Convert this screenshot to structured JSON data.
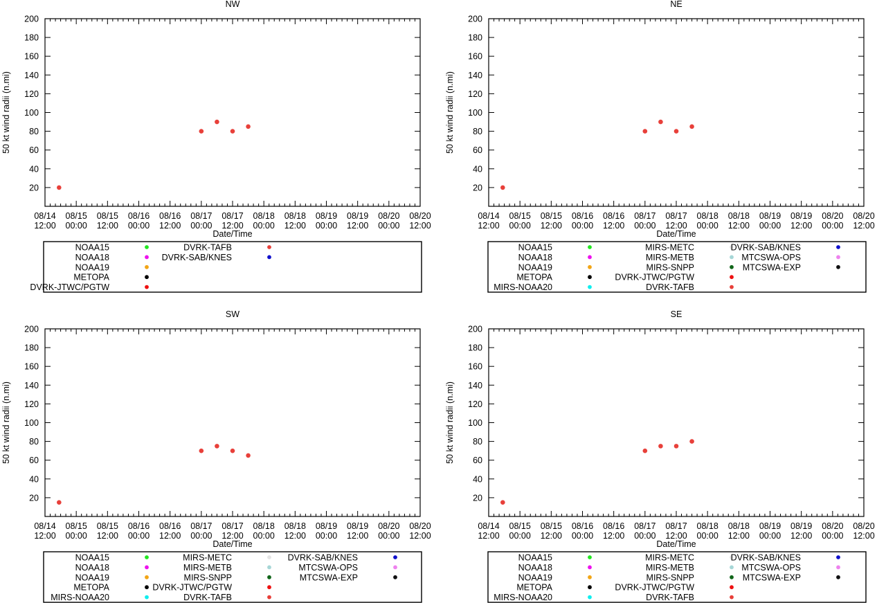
{
  "chart_data": [
    {
      "type": "scatter",
      "title": "NW",
      "xlabel": "Date/Time",
      "ylabel": "50 kt wind radii (n.mi)",
      "ylim": [
        0,
        200
      ],
      "yticks": [
        20,
        40,
        60,
        80,
        100,
        120,
        140,
        160,
        180,
        200
      ],
      "xlim": [
        0,
        12
      ],
      "xtick_labels": [
        [
          "08/14",
          "12:00"
        ],
        [
          "08/15",
          "00:00"
        ],
        [
          "08/15",
          "12:00"
        ],
        [
          "08/16",
          "00:00"
        ],
        [
          "08/16",
          "12:00"
        ],
        [
          "08/17",
          "00:00"
        ],
        [
          "08/17",
          "12:00"
        ],
        [
          "08/18",
          "00:00"
        ],
        [
          "08/18",
          "12:00"
        ],
        [
          "08/19",
          "00:00"
        ],
        [
          "08/19",
          "12:00"
        ],
        [
          "08/20",
          "00:00"
        ],
        [
          "08/20",
          "12:00"
        ]
      ],
      "series": [
        {
          "name": "DVRK-TAFB",
          "color": "#e8403a",
          "x": [
            0.45,
            5.0,
            5.5,
            6.0,
            6.5
          ],
          "y": [
            20,
            80,
            90,
            80,
            85
          ]
        }
      ],
      "legend": [
        {
          "name": "NOAA15",
          "color": "#22e822"
        },
        {
          "name": "NOAA18",
          "color": "#ee11ee"
        },
        {
          "name": "NOAA19",
          "color": "#f2a516"
        },
        {
          "name": "METOPA",
          "color": "#000000"
        },
        {
          "name": "DVRK-JTWC/PGTW",
          "color": "#ee1111"
        },
        {
          "name": "DVRK-TAFB",
          "color": "#e8403a"
        },
        {
          "name": "DVRK-SAB/KNES",
          "color": "#1111cc"
        }
      ]
    },
    {
      "type": "scatter",
      "title": "NE",
      "xlabel": "Date/Time",
      "ylabel": "50 kt wind radii (n.mi)",
      "ylim": [
        0,
        200
      ],
      "yticks": [
        20,
        40,
        60,
        80,
        100,
        120,
        140,
        160,
        180,
        200
      ],
      "xlim": [
        0,
        12
      ],
      "xtick_labels": [
        [
          "08/14",
          "12:00"
        ],
        [
          "08/15",
          "00:00"
        ],
        [
          "08/15",
          "12:00"
        ],
        [
          "08/16",
          "00:00"
        ],
        [
          "08/16",
          "12:00"
        ],
        [
          "08/17",
          "00:00"
        ],
        [
          "08/17",
          "12:00"
        ],
        [
          "08/18",
          "00:00"
        ],
        [
          "08/18",
          "12:00"
        ],
        [
          "08/19",
          "00:00"
        ],
        [
          "08/19",
          "12:00"
        ],
        [
          "08/20",
          "00:00"
        ],
        [
          "08/20",
          "12:00"
        ]
      ],
      "series": [
        {
          "name": "DVRK-TAFB",
          "color": "#e8403a",
          "x": [
            0.45,
            5.0,
            5.5,
            6.0,
            6.5
          ],
          "y": [
            20,
            80,
            90,
            80,
            85
          ]
        }
      ],
      "legend": [
        {
          "name": "NOAA15",
          "color": "#22e822"
        },
        {
          "name": "NOAA18",
          "color": "#ee11ee"
        },
        {
          "name": "NOAA19",
          "color": "#f2a516"
        },
        {
          "name": "METOPA",
          "color": "#000000"
        },
        {
          "name": "MIRS-NOAA20",
          "color": "#11eeee"
        },
        {
          "name": "MIRS-METC",
          "color": "#e4e4e4"
        },
        {
          "name": "MIRS-METB",
          "color": "#a6d6d6"
        },
        {
          "name": "MIRS-SNPP",
          "color": "#11661a"
        },
        {
          "name": "DVRK-JTWC/PGTW",
          "color": "#ee1111"
        },
        {
          "name": "DVRK-TAFB",
          "color": "#e8403a"
        },
        {
          "name": "DVRK-SAB/KNES",
          "color": "#1111cc"
        },
        {
          "name": "MTCSWA-OPS",
          "color": "#ee82ee"
        },
        {
          "name": "MTCSWA-EXP",
          "color": "#111111"
        }
      ]
    },
    {
      "type": "scatter",
      "title": "SW",
      "xlabel": "Date/Time",
      "ylabel": "50 kt wind radii (n.mi)",
      "ylim": [
        0,
        200
      ],
      "yticks": [
        20,
        40,
        60,
        80,
        100,
        120,
        140,
        160,
        180,
        200
      ],
      "xlim": [
        0,
        12
      ],
      "xtick_labels": [
        [
          "08/14",
          "12:00"
        ],
        [
          "08/15",
          "00:00"
        ],
        [
          "08/15",
          "12:00"
        ],
        [
          "08/16",
          "00:00"
        ],
        [
          "08/16",
          "12:00"
        ],
        [
          "08/17",
          "00:00"
        ],
        [
          "08/17",
          "12:00"
        ],
        [
          "08/18",
          "00:00"
        ],
        [
          "08/18",
          "12:00"
        ],
        [
          "08/19",
          "00:00"
        ],
        [
          "08/19",
          "12:00"
        ],
        [
          "08/20",
          "00:00"
        ],
        [
          "08/20",
          "12:00"
        ]
      ],
      "series": [
        {
          "name": "DVRK-TAFB",
          "color": "#e8403a",
          "x": [
            0.45,
            5.0,
            5.5,
            6.0,
            6.5
          ],
          "y": [
            15,
            70,
            75,
            70,
            65
          ]
        }
      ],
      "legend": [
        {
          "name": "NOAA15",
          "color": "#22e822"
        },
        {
          "name": "NOAA18",
          "color": "#ee11ee"
        },
        {
          "name": "NOAA19",
          "color": "#f2a516"
        },
        {
          "name": "METOPA",
          "color": "#000000"
        },
        {
          "name": "MIRS-NOAA20",
          "color": "#11eeee"
        },
        {
          "name": "MIRS-METC",
          "color": "#e4e4e4"
        },
        {
          "name": "MIRS-METB",
          "color": "#a6d6d6"
        },
        {
          "name": "MIRS-SNPP",
          "color": "#11661a"
        },
        {
          "name": "DVRK-JTWC/PGTW",
          "color": "#ee1111"
        },
        {
          "name": "DVRK-TAFB",
          "color": "#e8403a"
        },
        {
          "name": "DVRK-SAB/KNES",
          "color": "#1111cc"
        },
        {
          "name": "MTCSWA-OPS",
          "color": "#ee82ee"
        },
        {
          "name": "MTCSWA-EXP",
          "color": "#111111"
        }
      ]
    },
    {
      "type": "scatter",
      "title": "SE",
      "xlabel": "Date/Time",
      "ylabel": "50 kt wind radii (n.mi)",
      "ylim": [
        0,
        200
      ],
      "yticks": [
        20,
        40,
        60,
        80,
        100,
        120,
        140,
        160,
        180,
        200
      ],
      "xlim": [
        0,
        12
      ],
      "xtick_labels": [
        [
          "08/14",
          "12:00"
        ],
        [
          "08/15",
          "00:00"
        ],
        [
          "08/15",
          "12:00"
        ],
        [
          "08/16",
          "00:00"
        ],
        [
          "08/16",
          "12:00"
        ],
        [
          "08/17",
          "00:00"
        ],
        [
          "08/17",
          "12:00"
        ],
        [
          "08/18",
          "00:00"
        ],
        [
          "08/18",
          "12:00"
        ],
        [
          "08/19",
          "00:00"
        ],
        [
          "08/19",
          "12:00"
        ],
        [
          "08/20",
          "00:00"
        ],
        [
          "08/20",
          "12:00"
        ]
      ],
      "series": [
        {
          "name": "DVRK-TAFB",
          "color": "#e8403a",
          "x": [
            0.45,
            5.0,
            5.5,
            6.0,
            6.5
          ],
          "y": [
            15,
            70,
            75,
            75,
            80
          ]
        }
      ],
      "legend": [
        {
          "name": "NOAA15",
          "color": "#22e822"
        },
        {
          "name": "NOAA18",
          "color": "#ee11ee"
        },
        {
          "name": "NOAA19",
          "color": "#f2a516"
        },
        {
          "name": "METOPA",
          "color": "#000000"
        },
        {
          "name": "MIRS-NOAA20",
          "color": "#11eeee"
        },
        {
          "name": "MIRS-METC",
          "color": "#e4e4e4"
        },
        {
          "name": "MIRS-METB",
          "color": "#a6d6d6"
        },
        {
          "name": "MIRS-SNPP",
          "color": "#11661a"
        },
        {
          "name": "DVRK-JTWC/PGTW",
          "color": "#ee1111"
        },
        {
          "name": "DVRK-TAFB",
          "color": "#e8403a"
        },
        {
          "name": "DVRK-SAB/KNES",
          "color": "#1111cc"
        },
        {
          "name": "MTCSWA-OPS",
          "color": "#ee82ee"
        },
        {
          "name": "MTCSWA-EXP",
          "color": "#111111"
        }
      ]
    }
  ]
}
